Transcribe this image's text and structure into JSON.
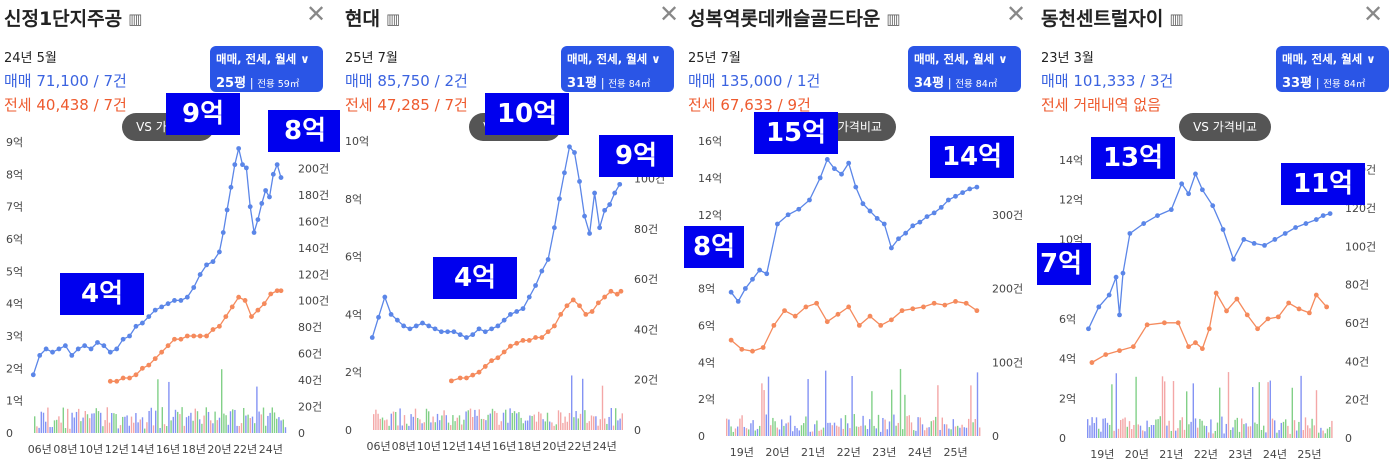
{
  "panels": [
    {
      "title": "신정1단지주공",
      "period": "24년 5월",
      "sale": "매매 71,100 / 7건",
      "lease": "전세 40,438 / 7건",
      "filter": {
        "type": "매매, 전세, 월세",
        "pyeong": "25평",
        "area": "전용 59㎡"
      },
      "vs": "VS 가격비교",
      "tags": [
        {
          "label": "9억"
        },
        {
          "label": "8억"
        },
        {
          "label": "4억"
        }
      ]
    },
    {
      "title": "현대",
      "period": "25년 7월",
      "sale": "매매 85,750 / 2건",
      "lease": "전세 47,285 / 7건",
      "filter": {
        "type": "매매, 전세, 월세",
        "pyeong": "31평",
        "area": "전용 84㎡"
      },
      "vs": "VS 가격비교",
      "tags": [
        {
          "label": "10억"
        },
        {
          "label": "9억"
        },
        {
          "label": "4억"
        }
      ]
    },
    {
      "title": "성복역롯데캐슬골드타운",
      "period": "25년 7월",
      "sale": "매매 135,000 / 1건",
      "lease": "전세 67,633 / 9건",
      "filter": {
        "type": "매매, 전세, 월세",
        "pyeong": "34평",
        "area": "전용 84㎡"
      },
      "vs": "VS 가격비교",
      "tags": [
        {
          "label": "15억"
        },
        {
          "label": "14억"
        },
        {
          "label": "8억"
        }
      ]
    },
    {
      "title": "동천센트럴자이",
      "period": "23년 3월",
      "sale": "매매 101,333 / 3건",
      "lease": "전세 거래내역 없음",
      "filter": {
        "type": "매매, 전세, 월세",
        "pyeong": "33평",
        "area": "전용 84㎡"
      },
      "vs": "VS 가격비교",
      "tags": [
        {
          "label": "13억"
        },
        {
          "label": "11억"
        },
        {
          "label": "7억"
        }
      ]
    }
  ],
  "chart_data": [
    {
      "type": "line",
      "title": "신정1단지주공",
      "x_tick_labels": [
        "06년",
        "08년",
        "10년",
        "12년",
        "14년",
        "16년",
        "18년",
        "20년",
        "22년",
        "24년"
      ],
      "x_range": [
        2005.4,
        2025.5
      ],
      "y_left_ticks": [
        "0",
        "1억",
        "2억",
        "3억",
        "4억",
        "5억",
        "6억",
        "7억",
        "8억",
        "9억"
      ],
      "y_left_range": [
        0,
        9
      ],
      "y_right_ticks": [
        "0",
        "20건",
        "40건",
        "60건",
        "80건",
        "100건",
        "120건",
        "140건",
        "160건",
        "180건",
        "200건"
      ],
      "y_right_range": [
        0,
        220
      ],
      "series": [
        {
          "name": "매매",
          "color": "#5b86e8",
          "x": [
            2005.5,
            2006,
            2006.5,
            2007,
            2007.5,
            2008,
            2008.5,
            2009,
            2009.5,
            2010,
            2010.5,
            2011,
            2011.5,
            2012,
            2012.5,
            2013,
            2013.5,
            2014,
            2014.5,
            2015,
            2015.5,
            2016,
            2016.5,
            2017,
            2017.5,
            2018,
            2018.5,
            2019,
            2019.5,
            2020,
            2020.3,
            2020.6,
            2020.9,
            2021.2,
            2021.5,
            2021.8,
            2022.1,
            2022.4,
            2022.7,
            2023,
            2023.3,
            2023.6,
            2023.9,
            2024.2,
            2024.5,
            2024.8
          ],
          "y": [
            1.8,
            2.4,
            2.6,
            2.5,
            2.6,
            2.7,
            2.4,
            2.6,
            2.7,
            2.6,
            2.8,
            2.7,
            2.5,
            2.6,
            2.9,
            3.0,
            3.3,
            3.4,
            3.6,
            3.8,
            3.9,
            4.0,
            4.1,
            4.1,
            4.2,
            4.5,
            4.9,
            5.2,
            5.3,
            5.6,
            6.2,
            6.9,
            7.6,
            8.3,
            8.8,
            8.3,
            8.2,
            7.0,
            6.2,
            6.6,
            7.1,
            7.5,
            7.3,
            8.0,
            8.3,
            7.9
          ]
        },
        {
          "name": "전세",
          "color": "#f58a5c",
          "x": [
            2011.5,
            2012,
            2012.5,
            2013,
            2013.5,
            2014,
            2014.5,
            2015,
            2015.5,
            2016,
            2016.5,
            2017,
            2017.5,
            2018,
            2018.5,
            2019,
            2019.5,
            2020,
            2020.5,
            2021,
            2021.5,
            2022,
            2022.5,
            2023,
            2023.5,
            2024,
            2024.5,
            2024.8
          ],
          "y": [
            1.6,
            1.6,
            1.7,
            1.7,
            1.8,
            2.0,
            2.1,
            2.3,
            2.5,
            2.7,
            2.9,
            2.9,
            3.0,
            3.0,
            3.0,
            3.0,
            3.2,
            3.3,
            3.6,
            3.9,
            4.2,
            4.1,
            3.6,
            3.8,
            4.0,
            4.3,
            4.4,
            4.4
          ]
        }
      ]
    },
    {
      "type": "line",
      "title": "현대",
      "x_tick_labels": [
        "06년",
        "08년",
        "10년",
        "12년",
        "14년",
        "16년",
        "18년",
        "20년",
        "22년",
        "24년"
      ],
      "x_range": [
        2005.4,
        2025.7
      ],
      "y_left_ticks": [
        "0",
        "2억",
        "4억",
        "6억",
        "8억",
        "10억"
      ],
      "y_left_range": [
        0,
        10
      ],
      "y_right_ticks": [
        "0",
        "20건",
        "40건",
        "60건",
        "80건",
        "100건"
      ],
      "y_right_range": [
        0,
        115
      ],
      "series": [
        {
          "name": "매매",
          "color": "#5b86e8",
          "x": [
            2005.5,
            2006,
            2006.5,
            2007,
            2007.5,
            2008,
            2008.5,
            2009,
            2009.5,
            2010,
            2010.5,
            2011,
            2011.5,
            2012,
            2012.5,
            2013,
            2013.5,
            2014,
            2014.5,
            2015,
            2015.5,
            2016,
            2016.5,
            2017,
            2017.5,
            2018,
            2018.5,
            2019,
            2019.5,
            2020,
            2020.4,
            2020.8,
            2021.2,
            2021.6,
            2022,
            2022.4,
            2022.8,
            2023.2,
            2023.6,
            2024,
            2024.4,
            2024.8,
            2025.2
          ],
          "y": [
            3.2,
            3.9,
            4.6,
            4.0,
            3.8,
            3.6,
            3.5,
            3.6,
            3.7,
            3.6,
            3.5,
            3.4,
            3.4,
            3.4,
            3.3,
            3.2,
            3.3,
            3.5,
            3.4,
            3.5,
            3.6,
            3.8,
            4.0,
            4.1,
            4.2,
            4.6,
            5.0,
            5.5,
            5.9,
            7.0,
            8.0,
            8.9,
            9.8,
            9.6,
            8.6,
            7.4,
            6.8,
            8.2,
            7.0,
            7.6,
            7.8,
            8.2,
            8.5
          ]
        },
        {
          "name": "전세",
          "color": "#f58a5c",
          "x": [
            2011.8,
            2012.5,
            2013,
            2013.5,
            2014,
            2014.5,
            2015,
            2015.5,
            2016,
            2016.5,
            2017,
            2017.5,
            2018,
            2018.5,
            2019,
            2019.5,
            2020,
            2020.5,
            2021,
            2021.5,
            2022,
            2022.5,
            2023,
            2023.5,
            2024,
            2024.5,
            2025,
            2025.3
          ],
          "y": [
            1.7,
            1.8,
            1.8,
            1.9,
            2.0,
            2.2,
            2.4,
            2.5,
            2.7,
            2.9,
            3.0,
            3.1,
            3.1,
            3.2,
            3.2,
            3.4,
            3.6,
            4.0,
            4.3,
            4.5,
            4.3,
            4.0,
            4.1,
            4.4,
            4.6,
            4.8,
            4.7,
            4.8
          ]
        }
      ]
    },
    {
      "type": "line",
      "title": "성복역롯데캐슬골드타운",
      "x_tick_labels": [
        "19년",
        "20년",
        "21년",
        "22년",
        "23년",
        "24년",
        "25년"
      ],
      "x_range": [
        2018.5,
        2025.8
      ],
      "y_left_ticks": [
        "0",
        "2억",
        "4억",
        "6억",
        "8억",
        "10억",
        "12억",
        "14억",
        "16억"
      ],
      "y_left_range": [
        0,
        16
      ],
      "y_right_ticks": [
        "0",
        "100건",
        "200건",
        "300건"
      ],
      "y_right_range": [
        0,
        400
      ],
      "series": [
        {
          "name": "매매",
          "color": "#5b86e8",
          "x": [
            2018.7,
            2018.9,
            2019.1,
            2019.3,
            2019.5,
            2019.7,
            2020,
            2020.3,
            2020.6,
            2020.9,
            2021.2,
            2021.4,
            2021.6,
            2021.8,
            2022,
            2022.2,
            2022.4,
            2022.6,
            2022.8,
            2023,
            2023.2,
            2023.4,
            2023.6,
            2023.8,
            2024,
            2024.2,
            2024.4,
            2024.6,
            2024.8,
            2025,
            2025.2,
            2025.4,
            2025.6
          ],
          "y": [
            7.8,
            7.3,
            8.0,
            8.5,
            9.0,
            8.8,
            11.5,
            12.0,
            12.3,
            12.8,
            14.0,
            15.0,
            14.5,
            14.2,
            14.8,
            13.5,
            12.6,
            12.2,
            11.8,
            11.5,
            10.2,
            10.7,
            11.0,
            11.4,
            11.6,
            11.9,
            12.1,
            12.4,
            12.8,
            13.0,
            13.2,
            13.4,
            13.5
          ]
        },
        {
          "name": "전세",
          "color": "#f58a5c",
          "x": [
            2018.7,
            2019,
            2019.3,
            2019.6,
            2019.9,
            2020.2,
            2020.5,
            2020.8,
            2021.1,
            2021.4,
            2021.7,
            2022,
            2022.3,
            2022.6,
            2022.9,
            2023.2,
            2023.5,
            2023.8,
            2024.1,
            2024.4,
            2024.7,
            2025,
            2025.3,
            2025.6
          ],
          "y": [
            5.2,
            4.7,
            4.6,
            4.8,
            6.0,
            6.8,
            6.5,
            7.0,
            7.2,
            6.2,
            6.6,
            7.0,
            6.0,
            6.5,
            6.0,
            6.3,
            6.8,
            6.9,
            7.0,
            7.2,
            7.1,
            7.3,
            7.2,
            6.8
          ]
        }
      ]
    },
    {
      "type": "line",
      "title": "동천센트럴자이",
      "x_tick_labels": [
        "19년",
        "20년",
        "21년",
        "22년",
        "23년",
        "24년",
        "25년"
      ],
      "x_range": [
        2018.5,
        2025.8
      ],
      "y_left_ticks": [
        "0",
        "2억",
        "4억",
        "6억",
        "8억",
        "10억",
        "12억",
        "14억"
      ],
      "y_left_range": [
        0,
        14
      ],
      "y_right_ticks": [
        "0",
        "20건",
        "40건",
        "60건",
        "80건",
        "100건",
        "120건",
        "140건"
      ],
      "y_right_range": [
        0,
        145
      ],
      "series": [
        {
          "name": "매매",
          "color": "#5b86e8",
          "x": [
            2018.6,
            2018.9,
            2019.2,
            2019.4,
            2019.5,
            2019.6,
            2019.8,
            2020.2,
            2020.6,
            2021,
            2021.3,
            2021.5,
            2021.7,
            2021.9,
            2022.2,
            2022.5,
            2022.8,
            2023.1,
            2023.4,
            2023.7,
            2024,
            2024.3,
            2024.6,
            2024.9,
            2025.2,
            2025.4,
            2025.6
          ],
          "y": [
            5.5,
            6.6,
            7.2,
            8.1,
            6.2,
            8.3,
            10.3,
            10.8,
            11.2,
            11.5,
            12.8,
            12.3,
            13.3,
            12.5,
            11.7,
            10.5,
            9.0,
            10.0,
            9.8,
            9.7,
            10.0,
            10.3,
            10.6,
            10.8,
            11.0,
            11.2,
            11.3
          ]
        },
        {
          "name": "전세",
          "color": "#f58a5c",
          "x": [
            2018.7,
            2019.1,
            2019.5,
            2019.9,
            2020.3,
            2020.8,
            2021.2,
            2021.5,
            2021.7,
            2021.9,
            2022.1,
            2022.3,
            2022.6,
            2022.9,
            2023.2,
            2023.5,
            2023.8,
            2024.1,
            2024.4,
            2024.7,
            2025,
            2025.2,
            2025.5
          ],
          "y": [
            3.8,
            4.2,
            4.4,
            4.6,
            5.7,
            5.8,
            5.8,
            4.6,
            4.8,
            4.5,
            5.5,
            7.3,
            6.4,
            7.0,
            6.2,
            5.5,
            6.0,
            6.1,
            6.8,
            6.5,
            6.3,
            7.2,
            6.6
          ]
        }
      ]
    }
  ]
}
